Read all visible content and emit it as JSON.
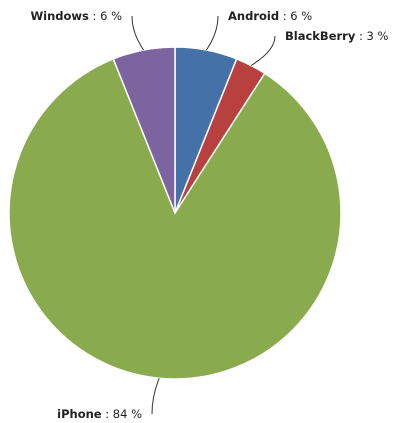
{
  "chart_data": {
    "type": "pie",
    "slices": [
      {
        "name": "Android",
        "value": 6,
        "color": "#4472a8"
      },
      {
        "name": "BlackBerry",
        "value": 3,
        "color": "#b8403f"
      },
      {
        "name": "iPhone",
        "value": 84,
        "color": "#8aab4d"
      },
      {
        "name": "Windows",
        "value": 6,
        "color": "#7b64a0"
      }
    ],
    "value_suffix": " %",
    "label_separator": ": "
  }
}
